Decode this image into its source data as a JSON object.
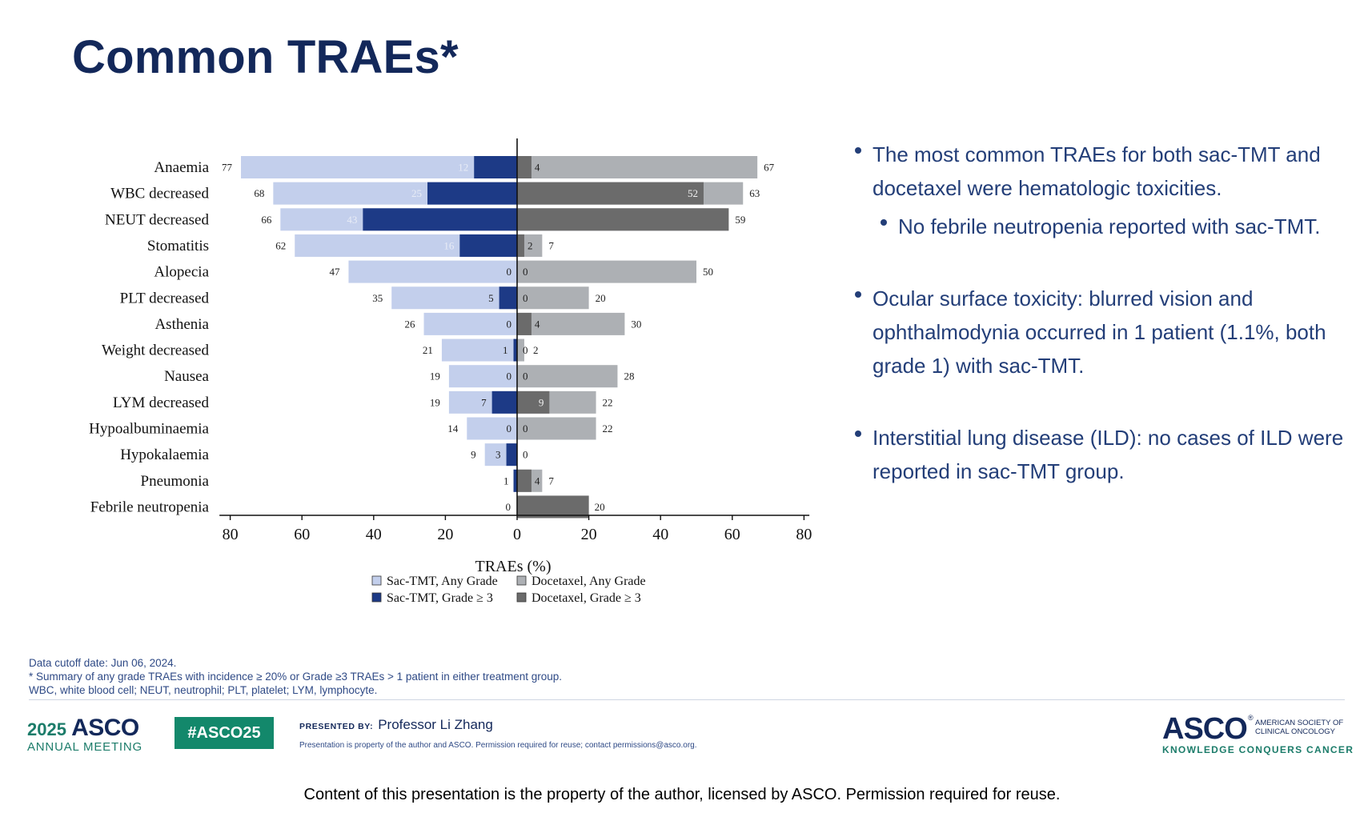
{
  "slide": {
    "title": "Common TRAEs*"
  },
  "chart_data": {
    "type": "bar",
    "orientation": "horizontal-diverging",
    "xlabel": "TRAEs (%)",
    "xlim": [
      -80,
      80
    ],
    "xticks": [
      -80,
      -60,
      -40,
      -20,
      0,
      20,
      40,
      60,
      80
    ],
    "xtick_labels": [
      "80",
      "60",
      "40",
      "20",
      "0",
      "20",
      "40",
      "60",
      "80"
    ],
    "categories": [
      "Anaemia",
      "WBC decreased",
      "NEUT decreased",
      "Stomatitis",
      "Alopecia",
      "PLT decreased",
      "Asthenia",
      "Weight decreased",
      "Nausea",
      "LYM decreased",
      "Hypoalbuminaemia",
      "Hypokalaemia",
      "Pneumonia",
      "Febrile neutropenia"
    ],
    "series": [
      {
        "name": "Sac-TMT, Any Grade",
        "side": "left",
        "color": "#c3cfec",
        "values": [
          77,
          68,
          66,
          62,
          47,
          35,
          26,
          21,
          19,
          19,
          14,
          9,
          1,
          0
        ]
      },
      {
        "name": "Sac-TMT, Grade ≥ 3",
        "side": "left",
        "color": "#1d3a86",
        "values": [
          12,
          25,
          43,
          16,
          0,
          5,
          0,
          1,
          0,
          7,
          0,
          3,
          1,
          0
        ]
      },
      {
        "name": "Docetaxel, Any Grade",
        "side": "right",
        "color": "#adb0b4",
        "values": [
          67,
          63,
          59,
          7,
          50,
          20,
          30,
          2,
          28,
          22,
          22,
          0,
          7,
          20
        ]
      },
      {
        "name": "Docetaxel, Grade ≥ 3",
        "side": "right",
        "color": "#6b6b6b",
        "values": [
          4,
          52,
          59,
          2,
          0,
          0,
          4,
          0,
          0,
          9,
          0,
          0,
          4,
          20
        ]
      }
    ],
    "legend_order": [
      0,
      2,
      1,
      3
    ],
    "legend_position": "bottom"
  },
  "bullets": [
    {
      "text": "The most common TRAEs for both sac-TMT and docetaxel were hematologic toxicities.",
      "level": 1
    },
    {
      "text": "No febrile neutropenia reported with sac-TMT.",
      "level": 2
    },
    {
      "text": "Ocular surface toxicity: blurred vision and ophthalmodynia occurred in 1 patient (1.1%, both grade 1) with sac-TMT.",
      "level": 1
    },
    {
      "text": "Interstitial lung disease (ILD): no cases of ILD were reported in sac-TMT group.",
      "level": 1
    }
  ],
  "footnotes": {
    "line1": "Data cutoff date: Jun 06, 2024.",
    "line2": "* Summary of any grade TRAEs with incidence ≥ 20% or Grade ≥3 TRAEs > 1 patient in either treatment group.",
    "line3": "WBC, white blood cell; NEUT, neutrophil; PLT, platelet; LYM, lymphocyte."
  },
  "footer": {
    "meeting_year": "2025",
    "meeting_org": "ASCO",
    "meeting_name": "ANNUAL MEETING",
    "hashtag": "#ASCO25",
    "presented_by_label": "PRESENTED BY:",
    "presenter": "Professor Li Zhang",
    "property_note": "Presentation is property of the author and ASCO. Permission required for reuse; contact permissions@asco.org.",
    "asco_logo": "ASCO",
    "asco_reg": "®",
    "asco_society": "AMERICAN SOCIETY OF CLINICAL ONCOLOGY",
    "asco_tagline": "KNOWLEDGE CONQUERS CANCER",
    "notice": "Content of this presentation is the property of the author, licensed by ASCO. Permission required for reuse."
  },
  "colors": {
    "title": "#13285a",
    "text": "#233e78",
    "hashtag_bg": "#13886b",
    "accent_green": "#1c7c6a"
  }
}
